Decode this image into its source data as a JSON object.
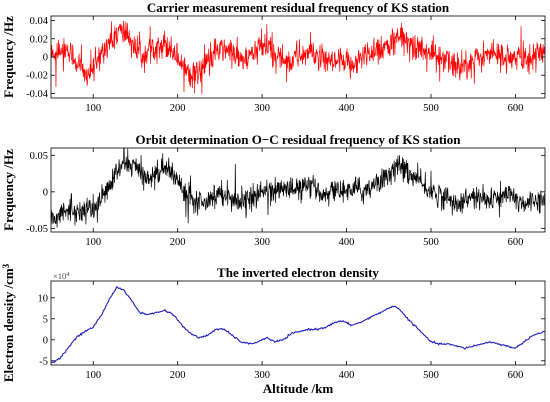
{
  "chart_data": [
    {
      "type": "line",
      "title": "Carrier measurement residual frequency of KS station",
      "ylabel": "Frequency /Hz",
      "xlabel": "",
      "xlim": [
        50,
        635
      ],
      "ylim": [
        -0.045,
        0.045
      ],
      "x_ticks": [
        100,
        200,
        300,
        400,
        500,
        600
      ],
      "y_ticks": [
        -0.04,
        -0.02,
        0,
        0.02,
        0.04
      ],
      "y_tick_labels": [
        "-0.04",
        "-0.02",
        "0",
        "0.02",
        "0.04"
      ],
      "grid": false,
      "noise": 0.014,
      "series": [
        {
          "color": "#ff0000",
          "trend": [
            [
              50,
              0.0
            ],
            [
              60,
              0.01
            ],
            [
              70,
              0.008
            ],
            [
              80,
              -0.005
            ],
            [
              90,
              -0.02
            ],
            [
              100,
              -0.015
            ],
            [
              110,
              0.005
            ],
            [
              120,
              0.018
            ],
            [
              130,
              0.028
            ],
            [
              140,
              0.025
            ],
            [
              150,
              0.008
            ],
            [
              160,
              0.002
            ],
            [
              170,
              0.01
            ],
            [
              180,
              0.015
            ],
            [
              190,
              0.012
            ],
            [
              200,
              0.0
            ],
            [
              210,
              -0.012
            ],
            [
              220,
              -0.02
            ],
            [
              230,
              -0.012
            ],
            [
              240,
              0.0
            ],
            [
              250,
              0.008
            ],
            [
              260,
              0.008
            ],
            [
              270,
              0.0
            ],
            [
              280,
              -0.005
            ],
            [
              290,
              0.005
            ],
            [
              300,
              0.012
            ],
            [
              310,
              0.008
            ],
            [
              320,
              0.0
            ],
            [
              330,
              -0.005
            ],
            [
              340,
              0.0
            ],
            [
              350,
              0.004
            ],
            [
              360,
              0.005
            ],
            [
              370,
              -0.004
            ],
            [
              380,
              -0.008
            ],
            [
              390,
              -0.005
            ],
            [
              400,
              -0.01
            ],
            [
              410,
              -0.006
            ],
            [
              420,
              0.0
            ],
            [
              430,
              0.008
            ],
            [
              440,
              0.01
            ],
            [
              450,
              0.012
            ],
            [
              460,
              0.02
            ],
            [
              470,
              0.018
            ],
            [
              480,
              0.012
            ],
            [
              490,
              0.008
            ],
            [
              500,
              0.004
            ],
            [
              510,
              0.0
            ],
            [
              520,
              -0.006
            ],
            [
              530,
              -0.01
            ],
            [
              540,
              -0.008
            ],
            [
              550,
              -0.004
            ],
            [
              560,
              0.0
            ],
            [
              570,
              0.004
            ],
            [
              580,
              0.002
            ],
            [
              590,
              0.0
            ],
            [
              600,
              -0.004
            ],
            [
              610,
              -0.002
            ],
            [
              620,
              0.002
            ],
            [
              635,
              0.0
            ]
          ]
        }
      ]
    },
    {
      "type": "line",
      "title": "Orbit determination O−C residual frequency of KS station",
      "ylabel": "Frequency /Hz",
      "xlabel": "",
      "xlim": [
        50,
        635
      ],
      "ylim": [
        -0.055,
        0.06
      ],
      "x_ticks": [
        100,
        200,
        300,
        400,
        500,
        600
      ],
      "y_ticks": [
        -0.05,
        0,
        0.05
      ],
      "y_tick_labels": [
        "-0.05",
        "0",
        "0.05"
      ],
      "grid": false,
      "noise": 0.014,
      "series": [
        {
          "color": "#000000",
          "trend": [
            [
              50,
              -0.035
            ],
            [
              60,
              -0.03
            ],
            [
              70,
              -0.025
            ],
            [
              80,
              -0.028
            ],
            [
              90,
              -0.025
            ],
            [
              100,
              -0.022
            ],
            [
              110,
              -0.01
            ],
            [
              120,
              0.01
            ],
            [
              130,
              0.03
            ],
            [
              140,
              0.04
            ],
            [
              150,
              0.035
            ],
            [
              160,
              0.02
            ],
            [
              170,
              0.02
            ],
            [
              180,
              0.03
            ],
            [
              190,
              0.03
            ],
            [
              200,
              0.015
            ],
            [
              210,
              0.0
            ],
            [
              220,
              -0.01
            ],
            [
              230,
              -0.012
            ],
            [
              240,
              -0.008
            ],
            [
              250,
              0.0
            ],
            [
              260,
              -0.005
            ],
            [
              270,
              -0.01
            ],
            [
              280,
              -0.012
            ],
            [
              290,
              -0.008
            ],
            [
              300,
              0.0
            ],
            [
              310,
              0.005
            ],
            [
              320,
              0.0
            ],
            [
              330,
              0.005
            ],
            [
              340,
              0.002
            ],
            [
              350,
              0.008
            ],
            [
              360,
              0.004
            ],
            [
              370,
              0.0
            ],
            [
              380,
              -0.002
            ],
            [
              390,
              0.004
            ],
            [
              400,
              0.0
            ],
            [
              410,
              0.005
            ],
            [
              420,
              0.0
            ],
            [
              430,
              0.01
            ],
            [
              440,
              0.015
            ],
            [
              450,
              0.025
            ],
            [
              460,
              0.035
            ],
            [
              470,
              0.03
            ],
            [
              480,
              0.02
            ],
            [
              490,
              0.01
            ],
            [
              500,
              0.0
            ],
            [
              510,
              -0.005
            ],
            [
              520,
              -0.01
            ],
            [
              530,
              -0.015
            ],
            [
              540,
              -0.012
            ],
            [
              550,
              -0.008
            ],
            [
              560,
              -0.01
            ],
            [
              570,
              -0.012
            ],
            [
              580,
              -0.008
            ],
            [
              590,
              -0.005
            ],
            [
              600,
              -0.01
            ],
            [
              610,
              -0.015
            ],
            [
              620,
              -0.012
            ],
            [
              635,
              -0.008
            ]
          ]
        }
      ]
    },
    {
      "type": "line",
      "title": "The inverted electron density",
      "ylabel": "Electron density /cm^3",
      "xlabel": "Altitude /km",
      "xlim": [
        50,
        635
      ],
      "ylim": [
        -6,
        14
      ],
      "y_exponent": "×10^4",
      "x_ticks": [
        100,
        200,
        300,
        400,
        500,
        600
      ],
      "y_ticks": [
        -5,
        0,
        5,
        10
      ],
      "y_tick_labels": [
        "-5",
        "0",
        "5",
        "10"
      ],
      "grid": false,
      "noise": 0.25,
      "series": [
        {
          "color": "#1f1fbf",
          "points": [
            [
              50,
              -5.5
            ],
            [
              60,
              -4.5
            ],
            [
              70,
              -2.0
            ],
            [
              80,
              0.5
            ],
            [
              90,
              2.0
            ],
            [
              100,
              3.0
            ],
            [
              110,
              6.0
            ],
            [
              120,
              10.0
            ],
            [
              128,
              12.5
            ],
            [
              135,
              12.0
            ],
            [
              145,
              9.5
            ],
            [
              155,
              6.5
            ],
            [
              165,
              6.0
            ],
            [
              175,
              6.5
            ],
            [
              185,
              7.0
            ],
            [
              195,
              6.0
            ],
            [
              205,
              3.5
            ],
            [
              215,
              1.5
            ],
            [
              225,
              0.5
            ],
            [
              235,
              1.0
            ],
            [
              245,
              2.5
            ],
            [
              255,
              2.5
            ],
            [
              265,
              1.0
            ],
            [
              275,
              -0.5
            ],
            [
              285,
              -1.0
            ],
            [
              295,
              -0.5
            ],
            [
              305,
              0.5
            ],
            [
              315,
              -0.5
            ],
            [
              325,
              0.0
            ],
            [
              335,
              1.5
            ],
            [
              345,
              2.0
            ],
            [
              355,
              2.5
            ],
            [
              365,
              2.5
            ],
            [
              375,
              3.0
            ],
            [
              385,
              4.0
            ],
            [
              395,
              4.5
            ],
            [
              405,
              3.5
            ],
            [
              415,
              4.0
            ],
            [
              425,
              5.0
            ],
            [
              435,
              6.0
            ],
            [
              445,
              7.0
            ],
            [
              455,
              8.0
            ],
            [
              462,
              7.5
            ],
            [
              470,
              5.5
            ],
            [
              480,
              3.5
            ],
            [
              490,
              1.5
            ],
            [
              500,
              -0.5
            ],
            [
              510,
              -1.0
            ],
            [
              520,
              -1.0
            ],
            [
              530,
              -1.5
            ],
            [
              540,
              -2.0
            ],
            [
              550,
              -1.5
            ],
            [
              560,
              -1.0
            ],
            [
              570,
              -0.5
            ],
            [
              580,
              -1.0
            ],
            [
              590,
              -1.5
            ],
            [
              600,
              -2.0
            ],
            [
              610,
              -0.5
            ],
            [
              620,
              1.0
            ],
            [
              635,
              2.0
            ]
          ]
        }
      ]
    }
  ]
}
